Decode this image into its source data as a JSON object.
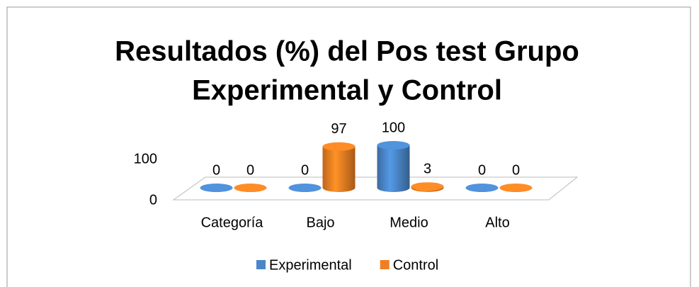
{
  "chart_data": {
    "type": "bar3d",
    "title": [
      "Resultados (%) del Pos test Grupo",
      "Experimental y Control"
    ],
    "categories": [
      "Categoría",
      "Bajo",
      "Medio",
      "Alto"
    ],
    "series": [
      {
        "name": "Experimental",
        "color": "#4a86c8",
        "values": [
          0,
          0,
          100,
          0
        ]
      },
      {
        "name": "Control",
        "color": "#f07f22",
        "values": [
          0,
          97,
          3,
          0
        ]
      }
    ],
    "ylim": [
      0,
      100
    ],
    "yticks": [
      0,
      100
    ],
    "legend": "bottom"
  }
}
